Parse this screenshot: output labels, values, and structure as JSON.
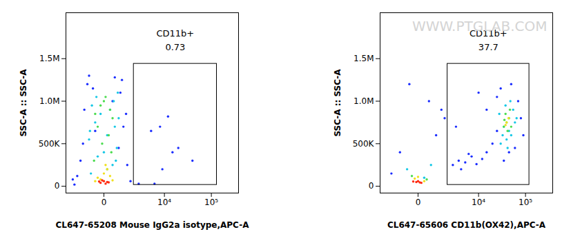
{
  "chart_data": [
    {
      "type": "scatter",
      "xlabel": "CL647-65208 Mouse IgG2a isotype,APC-A",
      "ylabel": "SSC-A :: SSC-A",
      "log": "x",
      "xlim": [
        -3000,
        370000
      ],
      "ylim": [
        -80000,
        2040000
      ],
      "xticks": [
        0,
        {
          "value": 10000,
          "label": "10⁴"
        },
        {
          "value": 100000,
          "label": "10⁵"
        }
      ],
      "yticks": [
        0,
        {
          "value": 500000,
          "label": "500K"
        },
        {
          "value": 1000000,
          "label": "1.0M"
        },
        {
          "value": 1500000,
          "label": "1.5M"
        }
      ],
      "gate": {
        "label": "CD11b+",
        "value": 0.73,
        "x": [
          1850,
          130000
        ],
        "y": [
          16000,
          1440000
        ]
      },
      "series": [
        {
          "color": "#1a2cff",
          "x": [
            -1800,
            -1200,
            -900,
            -700,
            1200,
            900,
            700,
            -600,
            1500,
            -1000,
            800,
            -400,
            600,
            300,
            -1500,
            1100,
            2500,
            -2000,
            400,
            -300,
            5000,
            8000,
            12000,
            15000,
            9000,
            6000,
            20000,
            40000
          ],
          "y": [
            20000,
            300000,
            900000,
            1200000,
            250000,
            700000,
            1100000,
            1300000,
            60000,
            500000,
            1250000,
            1150000,
            450000,
            1000000,
            120000,
            850000,
            30000,
            80000,
            1280000,
            650000,
            650000,
            700000,
            820000,
            400000,
            200000,
            30000,
            450000,
            300000
          ]
        },
        {
          "color": "#16c8e6",
          "x": [
            -500,
            300,
            -200,
            500,
            -600,
            100,
            400,
            -300,
            600,
            -100,
            200,
            -450,
            350,
            -250,
            550,
            0,
            -550,
            450
          ],
          "y": [
            150000,
            250000,
            350000,
            450000,
            550000,
            600000,
            700000,
            750000,
            800000,
            850000,
            900000,
            950000,
            1000000,
            1050000,
            1100000,
            400000,
            650000,
            300000
          ]
        },
        {
          "color": "#4cdc50",
          "x": [
            -300,
            200,
            -100,
            300,
            0,
            -200,
            150,
            -50,
            250,
            -350,
            100,
            50
          ],
          "y": [
            850000,
            900000,
            950000,
            800000,
            1000000,
            700000,
            600000,
            500000,
            400000,
            300000,
            200000,
            1050000
          ]
        },
        {
          "color": "#f0e020",
          "x": [
            -200,
            200,
            0,
            -100,
            100,
            -300,
            300,
            50
          ],
          "y": [
            100000,
            120000,
            150000,
            80000,
            200000,
            60000,
            70000,
            250000
          ]
        },
        {
          "color": "#ff2a10",
          "x": [
            -100,
            100,
            0,
            -50,
            50,
            150,
            -150
          ],
          "y": [
            40000,
            50000,
            60000,
            70000,
            30000,
            45000,
            55000
          ]
        }
      ]
    },
    {
      "type": "scatter",
      "xlabel": "CL647-65606 CD11b(OX42),APC-A",
      "ylabel": "SSC-A :: SSC-A",
      "log": "x",
      "xlim": [
        -3000,
        370000
      ],
      "ylim": [
        -80000,
        2040000
      ],
      "xticks": [
        0,
        {
          "value": 10000,
          "label": "10⁴"
        },
        {
          "value": 100000,
          "label": "10⁵"
        }
      ],
      "yticks": [
        0,
        {
          "value": 500000,
          "label": "500K"
        },
        {
          "value": 1000000,
          "label": "1.0M"
        },
        {
          "value": 1500000,
          "label": "1.5M"
        }
      ],
      "gate": {
        "label": "CD11b+",
        "value": 37.7,
        "x": [
          1800,
          120000
        ],
        "y": [
          16000,
          1440000
        ]
      },
      "annotations": [
        {
          "text": "WWW.PTGLAB.COM"
        }
      ],
      "series": [
        {
          "color": "#1a2cff",
          "x": [
            -1500,
            -800,
            800,
            1200,
            -300,
            400,
            2500,
            3500,
            5000,
            7000,
            9000,
            12000,
            15000,
            4000,
            6000,
            20000,
            25000,
            15000,
            50000,
            80000,
            60000,
            25000,
            30000,
            90000,
            45000,
            70000,
            35000,
            3000,
            10000,
            1500
          ],
          "y": [
            150000,
            400000,
            600000,
            900000,
            1200000,
            1000000,
            250000,
            300000,
            280000,
            350000,
            260000,
            320000,
            400000,
            200000,
            380000,
            500000,
            1050000,
            900000,
            1200000,
            800000,
            450000,
            650000,
            1150000,
            600000,
            400000,
            1000000,
            300000,
            700000,
            1100000,
            800000
          ]
        },
        {
          "color": "#16c8e6",
          "x": [
            30000,
            40000,
            50000,
            35000,
            45000,
            60000,
            28000,
            55000,
            38000,
            48000,
            33000,
            65000,
            42000,
            -400,
            500,
            200
          ],
          "y": [
            500000,
            550000,
            600000,
            700000,
            650000,
            750000,
            850000,
            900000,
            950000,
            1000000,
            600000,
            800000,
            450000,
            200000,
            250000,
            100000
          ]
        },
        {
          "color": "#4cdc50",
          "x": [
            35000,
            40000,
            45000,
            38000,
            42000,
            50000,
            36000,
            47000,
            -200,
            300
          ],
          "y": [
            700000,
            750000,
            800000,
            850000,
            650000,
            700000,
            780000,
            900000,
            120000,
            80000
          ]
        },
        {
          "color": "#f0e020",
          "x": [
            40000,
            44000,
            38000,
            -100,
            200,
            0
          ],
          "y": [
            750000,
            800000,
            720000,
            90000,
            60000,
            110000
          ]
        },
        {
          "color": "#ff2a10",
          "x": [
            -50,
            100,
            0,
            -150,
            50
          ],
          "y": [
            50000,
            40000,
            60000,
            55000,
            45000
          ]
        }
      ]
    }
  ]
}
